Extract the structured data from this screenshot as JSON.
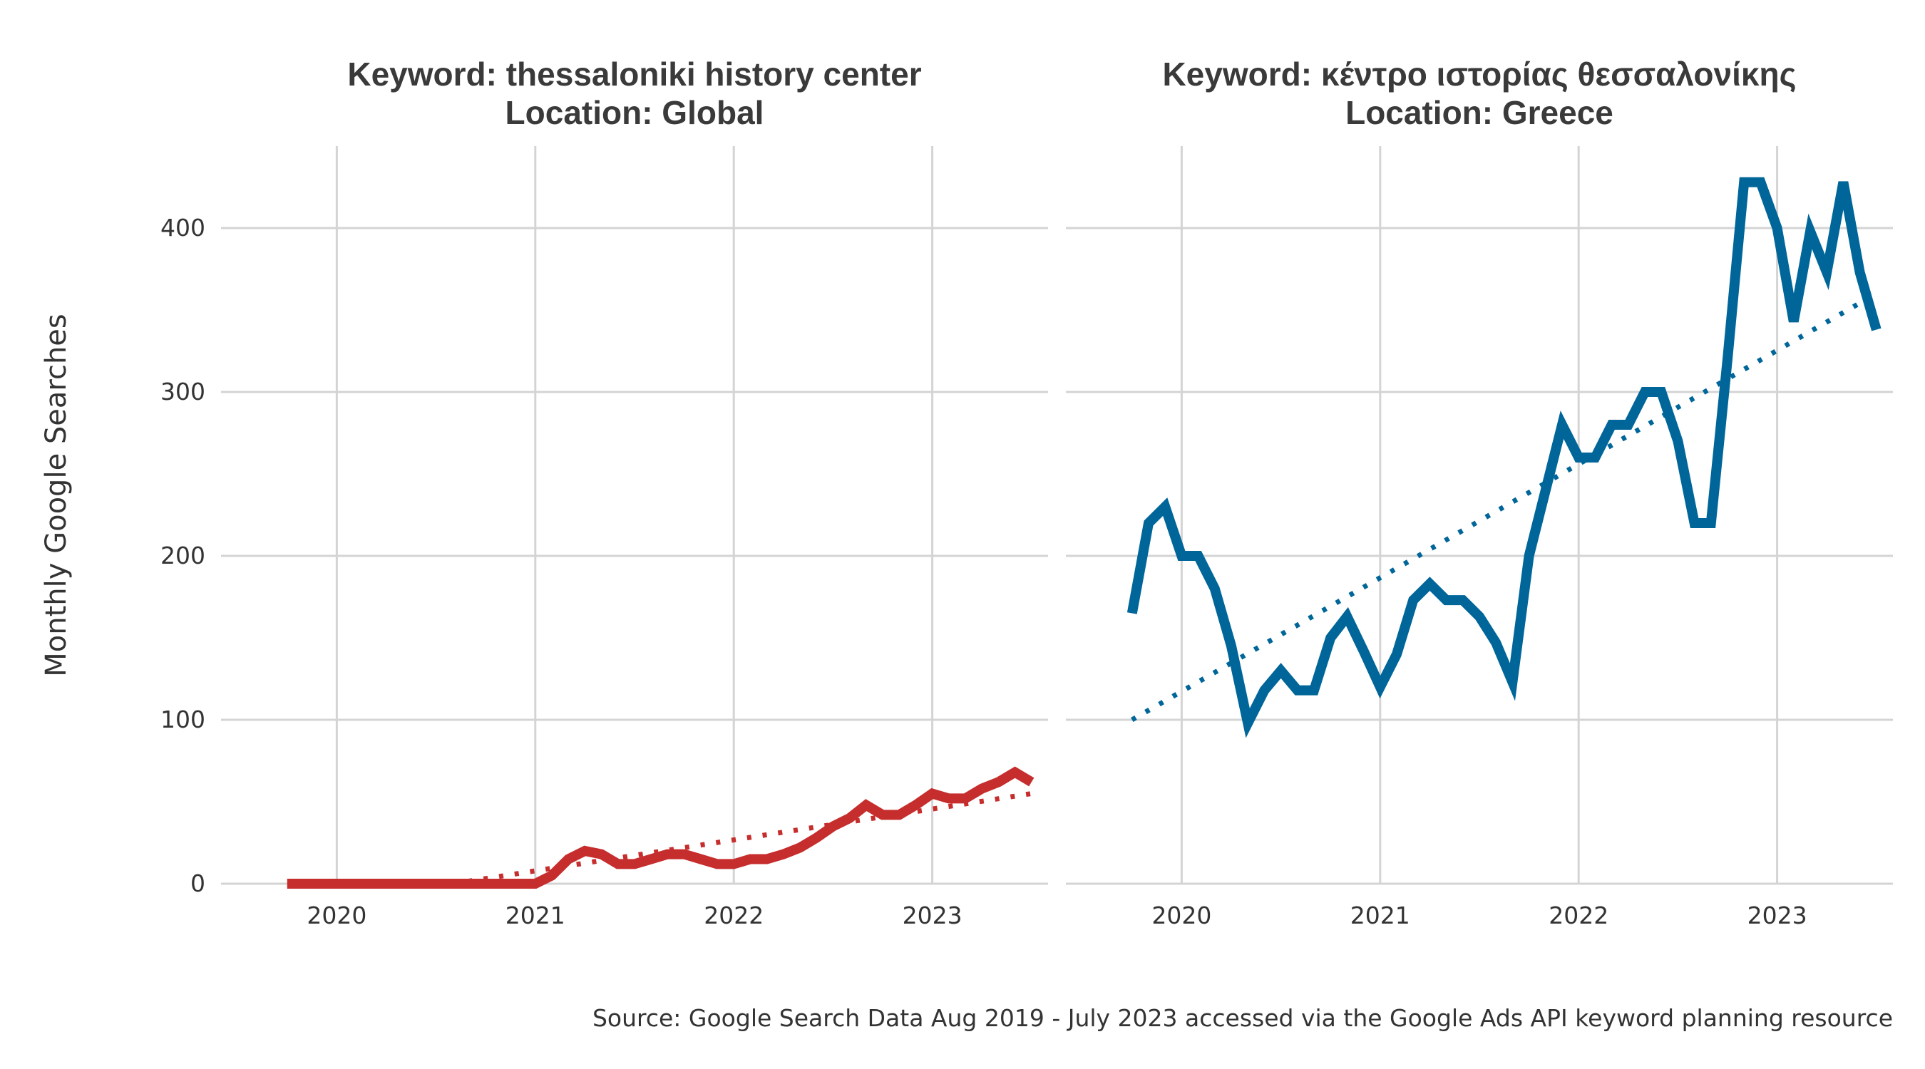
{
  "ylabel": "Monthly Google Searches",
  "caption": "Source: Google Search Data Aug 2019 - July 2023 accessed via the Google Ads API keyword planning resource",
  "chart_data": [
    {
      "type": "line",
      "title_line1": "Keyword: thessaloniki history center",
      "title_line2": "Location: Global",
      "color": "#c62d2d",
      "ylim": [
        0,
        450
      ],
      "y_ticks": [
        0,
        100,
        200,
        300,
        400
      ],
      "x_ticks": [
        "2020",
        "2021",
        "2022",
        "2023"
      ],
      "x_range": [
        "2019-06",
        "2023-08"
      ],
      "x": [
        "2019-10",
        "2019-11",
        "2019-12",
        "2020-01",
        "2020-02",
        "2020-03",
        "2020-04",
        "2020-05",
        "2020-06",
        "2020-07",
        "2020-08",
        "2020-09",
        "2020-10",
        "2020-11",
        "2020-12",
        "2021-01",
        "2021-02",
        "2021-03",
        "2021-04",
        "2021-05",
        "2021-06",
        "2021-07",
        "2021-08",
        "2021-09",
        "2021-10",
        "2021-11",
        "2021-12",
        "2022-01",
        "2022-02",
        "2022-03",
        "2022-04",
        "2022-05",
        "2022-06",
        "2022-07",
        "2022-08",
        "2022-09",
        "2022-10",
        "2022-11",
        "2022-12",
        "2023-01",
        "2023-02",
        "2023-03",
        "2023-04",
        "2023-05",
        "2023-06",
        "2023-07"
      ],
      "values": [
        0,
        0,
        0,
        0,
        0,
        0,
        0,
        0,
        0,
        0,
        0,
        0,
        0,
        0,
        0,
        0,
        5,
        15,
        20,
        18,
        12,
        12,
        15,
        18,
        18,
        15,
        12,
        12,
        15,
        15,
        18,
        22,
        28,
        35,
        40,
        48,
        42,
        42,
        48,
        55,
        52,
        52,
        58,
        62,
        68,
        62
      ],
      "trend": {
        "style": "dotted",
        "from": {
          "x": "2020-08",
          "y": 0
        },
        "to": {
          "x": "2023-07",
          "y": 55
        }
      }
    },
    {
      "type": "line",
      "title_line1": "Keyword: κέντρο ιστορίας θεσσαλονίκης",
      "title_line2": "Location: Greece",
      "color": "#006699",
      "ylim": [
        0,
        450
      ],
      "y_ticks": [
        0,
        100,
        200,
        300,
        400
      ],
      "x_ticks": [
        "2020",
        "2021",
        "2022",
        "2023"
      ],
      "x_range": [
        "2019-06",
        "2023-08"
      ],
      "x": [
        "2019-10",
        "2019-11",
        "2019-12",
        "2020-01",
        "2020-02",
        "2020-03",
        "2020-04",
        "2020-05",
        "2020-06",
        "2020-07",
        "2020-08",
        "2020-09",
        "2020-10",
        "2020-11",
        "2020-12",
        "2021-01",
        "2021-02",
        "2021-03",
        "2021-04",
        "2021-05",
        "2021-06",
        "2021-07",
        "2021-08",
        "2021-09",
        "2021-10",
        "2021-11",
        "2021-12",
        "2022-01",
        "2022-02",
        "2022-03",
        "2022-04",
        "2022-05",
        "2022-06",
        "2022-07",
        "2022-08",
        "2022-09",
        "2022-10",
        "2022-11",
        "2022-12",
        "2023-01",
        "2023-02",
        "2023-03",
        "2023-04",
        "2023-05",
        "2023-06",
        "2023-07"
      ],
      "values": [
        165,
        220,
        230,
        200,
        200,
        180,
        145,
        98,
        118,
        130,
        118,
        118,
        150,
        163,
        142,
        120,
        140,
        173,
        183,
        173,
        173,
        163,
        147,
        123,
        200,
        240,
        280,
        260,
        260,
        280,
        280,
        300,
        300,
        270,
        220,
        220,
        320,
        428,
        428,
        400,
        343,
        398,
        373,
        428,
        373,
        338
      ],
      "trend": {
        "style": "dotted",
        "from": {
          "x": "2019-10",
          "y": 100
        },
        "to": {
          "x": "2023-07",
          "y": 360
        }
      }
    }
  ]
}
